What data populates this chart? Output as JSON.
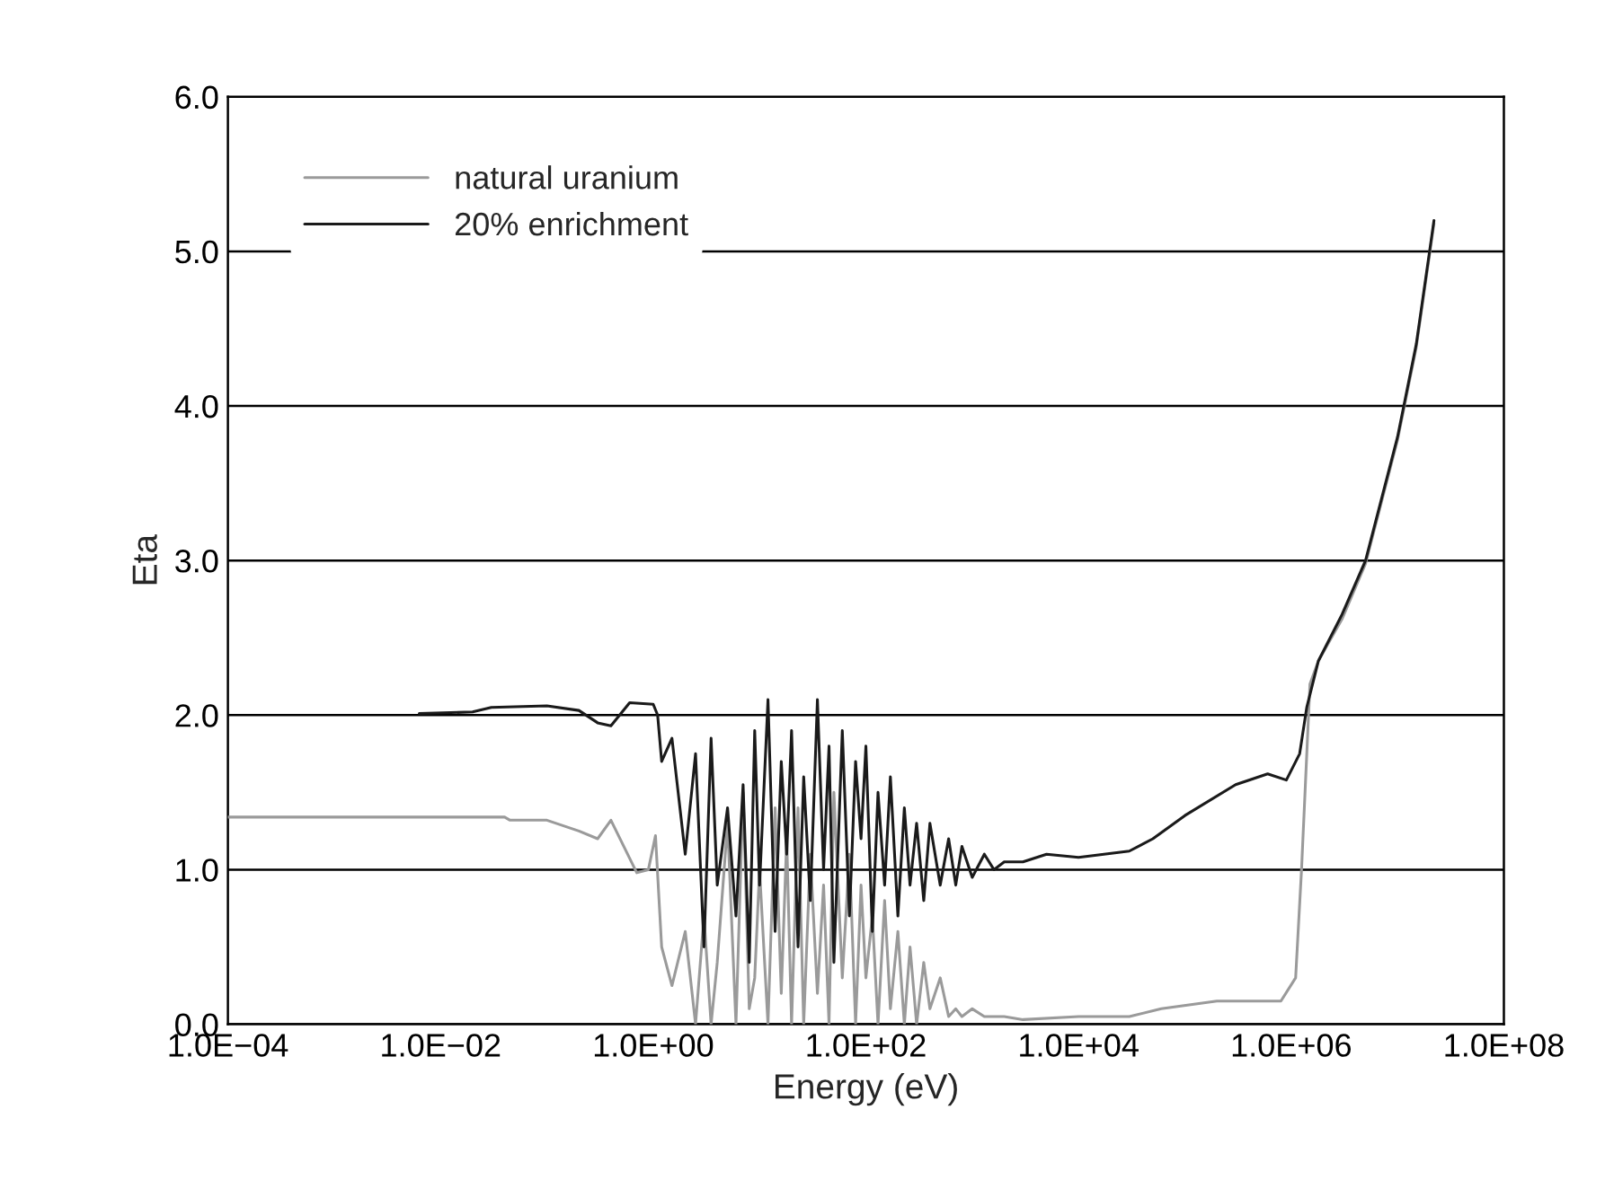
{
  "chart_data": {
    "type": "line",
    "xlabel": "Energy (eV)",
    "ylabel": "Eta",
    "log": "x",
    "xlim": [
      0.0001,
      100000000
    ],
    "ylim": [
      0,
      6
    ],
    "xticks": [
      {
        "value": 0.0001,
        "label": "1.0E−04"
      },
      {
        "value": 0.01,
        "label": "1.0E−02"
      },
      {
        "value": 1,
        "label": "1.0E+00"
      },
      {
        "value": 100,
        "label": "1.0E+02"
      },
      {
        "value": 10000,
        "label": "1.0E+04"
      },
      {
        "value": 1000000,
        "label": "1.0E+06"
      },
      {
        "value": 100000000,
        "label": "1.0E+08"
      }
    ],
    "yticks": [
      {
        "value": 0,
        "label": "0.0"
      },
      {
        "value": 1,
        "label": "1.0"
      },
      {
        "value": 2,
        "label": "2.0"
      },
      {
        "value": 3,
        "label": "3.0"
      },
      {
        "value": 4,
        "label": "4.0"
      },
      {
        "value": 5,
        "label": "5.0"
      },
      {
        "value": 6,
        "label": "6.0"
      }
    ],
    "grid": "y",
    "legend": "top left",
    "marker": "none",
    "line_style": "solid",
    "series": [
      {
        "name": "natural uranium",
        "color": "#9a9a9a",
        "x": [
          0.0001,
          0.04,
          0.045,
          0.1,
          0.2,
          0.3,
          0.4,
          0.7,
          0.9,
          1.05,
          1.2,
          1.5,
          2,
          2.5,
          3,
          3.5,
          4,
          5,
          6,
          7,
          8,
          9,
          10,
          12,
          14,
          16,
          18,
          20,
          23,
          26,
          30,
          35,
          40,
          45,
          50,
          60,
          70,
          80,
          90,
          100,
          115,
          130,
          150,
          170,
          200,
          230,
          260,
          300,
          350,
          400,
          500,
          600,
          700,
          800,
          1000,
          1300,
          1600,
          2000,
          3000,
          10000,
          30000,
          60000,
          200000,
          800000,
          1100000,
          1250000,
          1500000,
          1800000,
          3000000,
          5000000,
          10000000,
          15000000,
          20000000,
          22000000
        ],
        "values": [
          1.34,
          1.34,
          1.32,
          1.32,
          1.25,
          1.2,
          1.32,
          0.98,
          1.0,
          1.22,
          0.5,
          0.25,
          0.6,
          0.0,
          0.7,
          0.0,
          0.4,
          1.3,
          0.0,
          1.5,
          0.1,
          0.3,
          1.0,
          0.0,
          1.4,
          0.2,
          1.2,
          0.0,
          1.4,
          0.0,
          1.1,
          0.2,
          0.9,
          0.0,
          1.5,
          0.3,
          1.1,
          0.0,
          0.9,
          0.3,
          0.7,
          0.0,
          0.8,
          0.1,
          0.6,
          0.0,
          0.5,
          0.0,
          0.4,
          0.1,
          0.3,
          0.05,
          0.1,
          0.05,
          0.1,
          0.05,
          0.05,
          0.05,
          0.03,
          0.05,
          0.05,
          0.1,
          0.15,
          0.15,
          0.3,
          1.0,
          2.2,
          2.35,
          2.62,
          2.98,
          3.78,
          4.38,
          4.98,
          5.18
        ]
      },
      {
        "name": "20% enrichment",
        "color": "#1a1a1a",
        "x": [
          0.0063,
          0.02,
          0.03,
          0.1,
          0.2,
          0.3,
          0.4,
          0.6,
          1.0,
          1.1,
          1.2,
          1.5,
          2,
          2.5,
          3,
          3.5,
          4,
          5,
          6,
          7,
          8,
          9,
          10,
          12,
          14,
          16,
          18,
          20,
          23,
          26,
          30,
          35,
          40,
          45,
          50,
          60,
          70,
          80,
          90,
          100,
          115,
          130,
          150,
          170,
          200,
          230,
          260,
          300,
          350,
          400,
          500,
          600,
          700,
          800,
          1000,
          1300,
          1600,
          2000,
          3000,
          5000,
          10000,
          30000,
          50000,
          100000,
          300000,
          600000,
          900000,
          1200000,
          1400000,
          1800000,
          3000000,
          5000000,
          10000000,
          15000000,
          20000000,
          22000000
        ],
        "values": [
          2.01,
          2.02,
          2.05,
          2.06,
          2.03,
          1.95,
          1.93,
          2.08,
          2.07,
          2.0,
          1.7,
          1.85,
          1.1,
          1.75,
          0.5,
          1.85,
          0.9,
          1.4,
          0.7,
          1.55,
          0.4,
          1.9,
          0.9,
          2.1,
          0.6,
          1.7,
          1.1,
          1.9,
          0.5,
          1.6,
          0.8,
          2.1,
          1.0,
          1.8,
          0.4,
          1.9,
          0.7,
          1.7,
          1.2,
          1.8,
          0.6,
          1.5,
          0.9,
          1.6,
          0.7,
          1.4,
          0.9,
          1.3,
          0.8,
          1.3,
          0.9,
          1.2,
          0.9,
          1.15,
          0.95,
          1.1,
          1.0,
          1.05,
          1.05,
          1.1,
          1.08,
          1.12,
          1.2,
          1.35,
          1.55,
          1.62,
          1.58,
          1.75,
          2.05,
          2.35,
          2.65,
          3.0,
          3.8,
          4.4,
          5.0,
          5.2
        ]
      }
    ]
  }
}
